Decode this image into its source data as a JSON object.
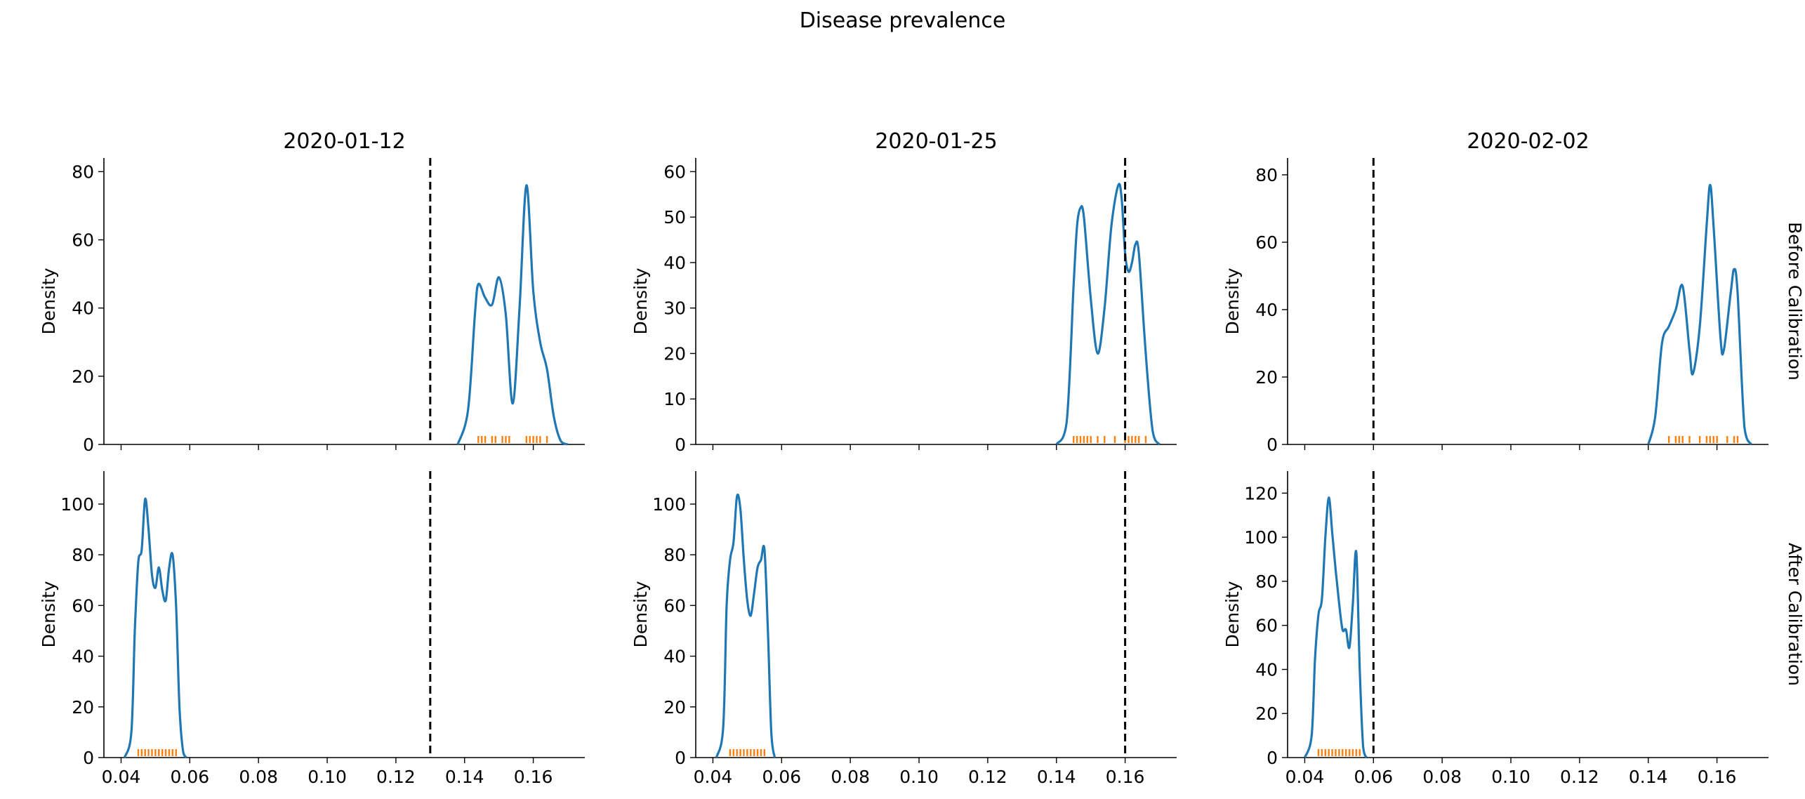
{
  "figure": {
    "title": "Disease prevalence",
    "row_labels": [
      "Before Calibration",
      "After Calibration"
    ],
    "column_titles": [
      "2020-01-12",
      "2020-01-25",
      "2020-02-02"
    ]
  },
  "colors": {
    "density": "#1f77b4",
    "rug": "#ff7f0e",
    "reference_line": "#000000"
  },
  "chart_data": [
    {
      "type": "area",
      "column_title": "2020-01-12",
      "row": "Before Calibration",
      "ylabel": "Density",
      "xlim": [
        0.035,
        0.175
      ],
      "ylim": [
        0,
        84
      ],
      "yticks": [
        0,
        20,
        40,
        60,
        80
      ],
      "xticks": [
        0.04,
        0.06,
        0.08,
        0.1,
        0.12,
        0.14,
        0.16
      ],
      "show_xtick_labels": false,
      "reference_x": 0.13,
      "density": {
        "x": [
          0.138,
          0.141,
          0.143,
          0.144,
          0.146,
          0.148,
          0.15,
          0.152,
          0.154,
          0.156,
          0.158,
          0.16,
          0.162,
          0.164,
          0.166,
          0.168,
          0.17
        ],
        "y": [
          0,
          10,
          38,
          47,
          43,
          41,
          49,
          38,
          12,
          40,
          76,
          45,
          30,
          22,
          8,
          1,
          0
        ]
      },
      "rug": [
        0.144,
        0.145,
        0.146,
        0.148,
        0.149,
        0.151,
        0.152,
        0.153,
        0.158,
        0.159,
        0.16,
        0.161,
        0.162,
        0.164
      ]
    },
    {
      "type": "area",
      "column_title": "2020-01-25",
      "row": "Before Calibration",
      "ylabel": "Density",
      "xlim": [
        0.035,
        0.175
      ],
      "ylim": [
        0,
        63
      ],
      "yticks": [
        0,
        10,
        20,
        30,
        40,
        50,
        60
      ],
      "xticks": [
        0.04,
        0.06,
        0.08,
        0.1,
        0.12,
        0.14,
        0.16
      ],
      "show_xtick_labels": false,
      "reference_x": 0.16,
      "density": {
        "x": [
          0.14,
          0.143,
          0.145,
          0.146,
          0.147,
          0.148,
          0.15,
          0.152,
          0.154,
          0.156,
          0.158,
          0.159,
          0.16,
          0.161,
          0.162,
          0.163,
          0.164,
          0.166,
          0.168,
          0.17
        ],
        "y": [
          0,
          5,
          35,
          48,
          52,
          50,
          32,
          20,
          30,
          48,
          57,
          54,
          42,
          38,
          40,
          44,
          42,
          20,
          3,
          0
        ]
      },
      "rug": [
        0.145,
        0.146,
        0.147,
        0.148,
        0.149,
        0.15,
        0.152,
        0.154,
        0.157,
        0.16,
        0.161,
        0.162,
        0.163,
        0.164,
        0.166
      ]
    },
    {
      "type": "area",
      "column_title": "2020-02-02",
      "row": "Before Calibration",
      "ylabel": "Density",
      "xlim": [
        0.035,
        0.175
      ],
      "ylim": [
        0,
        85
      ],
      "yticks": [
        0,
        20,
        40,
        60,
        80
      ],
      "xticks": [
        0.04,
        0.06,
        0.08,
        0.1,
        0.12,
        0.14,
        0.16
      ],
      "show_xtick_labels": false,
      "reference_x": 0.06,
      "density": {
        "x": [
          0.14,
          0.142,
          0.144,
          0.146,
          0.148,
          0.15,
          0.152,
          0.153,
          0.155,
          0.157,
          0.158,
          0.159,
          0.161,
          0.162,
          0.164,
          0.165,
          0.166,
          0.168,
          0.17
        ],
        "y": [
          0,
          8,
          30,
          35,
          40,
          47,
          28,
          21,
          35,
          65,
          77,
          65,
          32,
          28,
          45,
          52,
          45,
          5,
          0
        ]
      },
      "rug": [
        0.146,
        0.148,
        0.149,
        0.15,
        0.152,
        0.155,
        0.157,
        0.158,
        0.159,
        0.16,
        0.163,
        0.165,
        0.166
      ]
    },
    {
      "type": "area",
      "column_title": "2020-01-12",
      "row": "After Calibration",
      "ylabel": "Density",
      "xlim": [
        0.035,
        0.175
      ],
      "ylim": [
        0,
        113
      ],
      "yticks": [
        0,
        20,
        40,
        60,
        80,
        100
      ],
      "xticks": [
        0.04,
        0.06,
        0.08,
        0.1,
        0.12,
        0.14,
        0.16
      ],
      "show_xtick_labels": true,
      "reference_x": 0.13,
      "density": {
        "x": [
          0.041,
          0.043,
          0.044,
          0.045,
          0.046,
          0.047,
          0.048,
          0.049,
          0.05,
          0.051,
          0.052,
          0.053,
          0.054,
          0.055,
          0.056,
          0.057,
          0.058,
          0.059
        ],
        "y": [
          0,
          10,
          50,
          77,
          82,
          102,
          90,
          72,
          67,
          75,
          66,
          62,
          75,
          80,
          60,
          20,
          3,
          0
        ]
      },
      "rug": [
        0.045,
        0.046,
        0.047,
        0.048,
        0.049,
        0.05,
        0.051,
        0.052,
        0.053,
        0.054,
        0.055,
        0.056
      ]
    },
    {
      "type": "area",
      "column_title": "2020-01-25",
      "row": "After Calibration",
      "ylabel": "Density",
      "xlim": [
        0.035,
        0.175
      ],
      "ylim": [
        0,
        113
      ],
      "yticks": [
        0,
        20,
        40,
        60,
        80,
        100
      ],
      "xticks": [
        0.04,
        0.06,
        0.08,
        0.1,
        0.12,
        0.14,
        0.16
      ],
      "show_xtick_labels": true,
      "reference_x": 0.16,
      "density": {
        "x": [
          0.041,
          0.043,
          0.044,
          0.045,
          0.046,
          0.047,
          0.048,
          0.049,
          0.05,
          0.051,
          0.052,
          0.053,
          0.054,
          0.055,
          0.056,
          0.057,
          0.058
        ],
        "y": [
          0,
          12,
          60,
          78,
          85,
          103,
          98,
          78,
          62,
          56,
          65,
          75,
          78,
          82,
          50,
          10,
          0
        ]
      },
      "rug": [
        0.045,
        0.046,
        0.047,
        0.048,
        0.049,
        0.05,
        0.051,
        0.052,
        0.053,
        0.054,
        0.055
      ]
    },
    {
      "type": "area",
      "column_title": "2020-02-02",
      "row": "After Calibration",
      "ylabel": "Density",
      "xlim": [
        0.035,
        0.175
      ],
      "ylim": [
        0,
        130
      ],
      "yticks": [
        0,
        20,
        40,
        60,
        80,
        100,
        120
      ],
      "xticks": [
        0.04,
        0.06,
        0.08,
        0.1,
        0.12,
        0.14,
        0.16
      ],
      "show_xtick_labels": true,
      "reference_x": 0.06,
      "density": {
        "x": [
          0.04,
          0.042,
          0.043,
          0.044,
          0.045,
          0.046,
          0.047,
          0.048,
          0.049,
          0.05,
          0.051,
          0.052,
          0.053,
          0.054,
          0.055,
          0.056,
          0.057,
          0.058
        ],
        "y": [
          0,
          10,
          45,
          65,
          72,
          100,
          118,
          102,
          85,
          70,
          58,
          58,
          50,
          70,
          93,
          40,
          5,
          0
        ]
      },
      "rug": [
        0.044,
        0.045,
        0.046,
        0.047,
        0.048,
        0.049,
        0.05,
        0.051,
        0.052,
        0.053,
        0.054,
        0.055,
        0.056
      ]
    }
  ]
}
